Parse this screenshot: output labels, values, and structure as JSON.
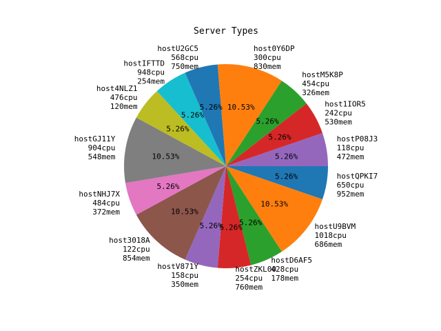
{
  "chart_data": {
    "type": "pie",
    "title": "Server Types",
    "start_angle_deg": 0,
    "direction": "clockwise",
    "slices": [
      {
        "name": "hostQPKI7",
        "cpu": "650cpu",
        "mem": "952mem",
        "value": 1,
        "pct_label": "5.26%",
        "color": "#1f77b4"
      },
      {
        "name": "hostU9BVM",
        "cpu": "1018cpu",
        "mem": "686mem",
        "value": 2,
        "pct_label": "10.53%",
        "color": "#ff7f0e"
      },
      {
        "name": "hostD6AF5",
        "cpu": "428cpu",
        "mem": "178mem",
        "value": 1,
        "pct_label": "5.26%",
        "color": "#2ca02c"
      },
      {
        "name": "hostZKL00",
        "cpu": "254cpu",
        "mem": "760mem",
        "value": 1,
        "pct_label": "5.26%",
        "color": "#d62728"
      },
      {
        "name": "hostV871Y",
        "cpu": "158cpu",
        "mem": "350mem",
        "value": 1,
        "pct_label": "5.26%",
        "color": "#9467bd"
      },
      {
        "name": "host3018A",
        "cpu": "122cpu",
        "mem": "854mem",
        "value": 2,
        "pct_label": "10.53%",
        "color": "#8c564b"
      },
      {
        "name": "hostNHJ7X",
        "cpu": "484cpu",
        "mem": "372mem",
        "value": 1,
        "pct_label": "5.26%",
        "color": "#e377c2"
      },
      {
        "name": "hostGJ11Y",
        "cpu": "904cpu",
        "mem": "548mem",
        "value": 2,
        "pct_label": "10.53%",
        "color": "#7f7f7f"
      },
      {
        "name": "host4NLZ1",
        "cpu": "476cpu",
        "mem": "120mem",
        "value": 1,
        "pct_label": "5.26%",
        "color": "#bcbd22"
      },
      {
        "name": "hostIFTTD",
        "cpu": "948cpu",
        "mem": "254mem",
        "value": 1,
        "pct_label": "5.26%",
        "color": "#17becf"
      },
      {
        "name": "hostU2GC5",
        "cpu": "568cpu",
        "mem": "750mem",
        "value": 1,
        "pct_label": "5.26%",
        "color": "#1f77b4"
      },
      {
        "name": "host0Y6DP",
        "cpu": "300cpu",
        "mem": "830mem",
        "value": 2,
        "pct_label": "10.53%",
        "color": "#ff7f0e"
      },
      {
        "name": "hostM5K8P",
        "cpu": "454cpu",
        "mem": "326mem",
        "value": 1,
        "pct_label": "5.26%",
        "color": "#2ca02c"
      },
      {
        "name": "host1IOR5",
        "cpu": "242cpu",
        "mem": "530mem",
        "value": 1,
        "pct_label": "5.26%",
        "color": "#d62728"
      },
      {
        "name": "hostP08J3",
        "cpu": "118cpu",
        "mem": "472mem",
        "value": 1,
        "pct_label": "5.26%",
        "color": "#9467bd"
      }
    ]
  }
}
